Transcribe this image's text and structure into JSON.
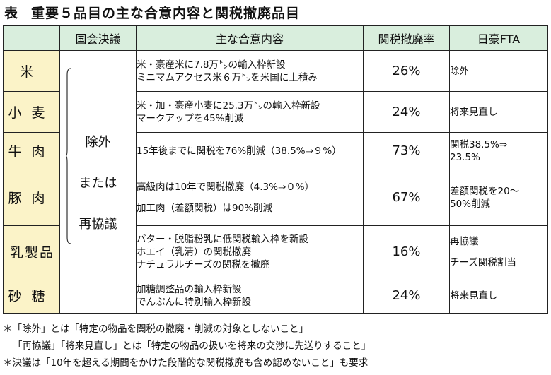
{
  "title": {
    "label": "表",
    "text": "重要５品目の主な合意内容と関税撤廃品目"
  },
  "headers": {
    "item": "",
    "diet": "国会決議",
    "content": "主な合意内容",
    "rate": "関税撤廃率",
    "fta": "日豪FTA"
  },
  "diet_resolution": [
    "除外",
    "または",
    "再協議"
  ],
  "rows": [
    {
      "item": "米",
      "content": [
        "米・豪産米に7.8万㌧の輸入枠新設",
        "ミニマムアクセス米６万㌧を米国に上積み"
      ],
      "rate": "26%",
      "fta": [
        "除外"
      ]
    },
    {
      "item": "小麦",
      "content": [
        "米・加・豪産小麦に25.3万㌧の輸入枠新設",
        "マークアップを45%削減"
      ],
      "rate": "24%",
      "fta": [
        "将来見直し"
      ]
    },
    {
      "item": "牛肉",
      "content": [
        "15年後までに関税を76%削減（38.5%⇒９%）"
      ],
      "rate": "73%",
      "fta": [
        "関税38.5%⇒",
        "23.5%"
      ]
    },
    {
      "item": "豚肉",
      "content": [
        "高級肉は10年で関税撤廃（4.3%⇒０%）",
        "",
        "加工肉（差額関税）は90%削減"
      ],
      "rate": "67%",
      "fta": [
        "差額関税を20～",
        "50%削減"
      ]
    },
    {
      "item": "乳製品",
      "content": [
        "バター・脱脂粉乳に低関税輸入枠を新設",
        "ホエイ（乳清）の関税撤廃",
        "ナチュラルチーズの関税を撤廃"
      ],
      "rate": "16%",
      "fta": [
        "再協議",
        "",
        "チーズ関税割当"
      ]
    },
    {
      "item": "砂糖",
      "content": [
        "加糖調整品の輸入枠新設",
        "でんぷんに特別輸入枠新設"
      ],
      "rate": "24%",
      "fta": [
        "将来見直し"
      ]
    }
  ],
  "notes": [
    "＊「除外」とは「特定の物品を関税の撤廃・削減の対象としないこと」",
    "「再協議」「将来見直し」とは「特定の物品の扱いを将来の交渉に先送りすること」",
    "＊決議は「10年を超える期間をかけた段階的な関税撤廃も含め認めないこと」も要求"
  ]
}
